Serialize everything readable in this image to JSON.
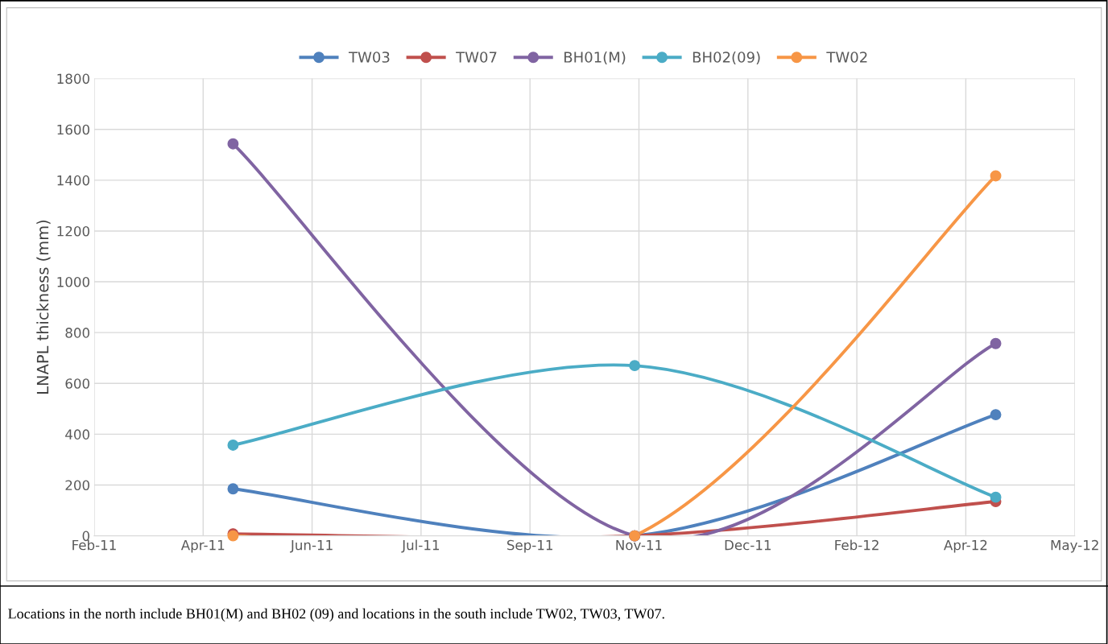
{
  "chart_data": {
    "type": "line",
    "ylabel": "LNAPL thickness (mm)",
    "x": [
      "2011-04-26",
      "2011-10-31",
      "2012-04-17"
    ],
    "series": [
      {
        "name": "TW03",
        "color": "#4f81bd",
        "values": [
          185,
          0,
          477
        ]
      },
      {
        "name": "TW07",
        "color": "#c0504d",
        "values": [
          8,
          0,
          135
        ]
      },
      {
        "name": "BH01(M)",
        "color": "#8064a2",
        "values": [
          1543,
          0,
          757
        ]
      },
      {
        "name": "BH02(09)",
        "color": "#4bacc6",
        "values": [
          357,
          670,
          152
        ]
      },
      {
        "name": "TW02",
        "color": "#f79646",
        "values": [
          0,
          0,
          1417
        ]
      }
    ],
    "xlim": [
      "2011-02-20",
      "2012-05-24"
    ],
    "xticks": [
      {
        "value": "2011-02-20",
        "label": "Feb-11"
      },
      {
        "value": "2011-04-12",
        "label": "Apr-11"
      },
      {
        "value": "2011-06-02",
        "label": "Jun-11"
      },
      {
        "value": "2011-07-23",
        "label": "Jul-11"
      },
      {
        "value": "2011-09-12",
        "label": "Sep-11"
      },
      {
        "value": "2011-11-02",
        "label": "Nov-11"
      },
      {
        "value": "2011-12-23",
        "label": "Dec-11"
      },
      {
        "value": "2012-02-12",
        "label": "Feb-12"
      },
      {
        "value": "2012-04-03",
        "label": "Apr-12"
      },
      {
        "value": "2012-05-24",
        "label": "May-12"
      }
    ],
    "ylim": [
      0,
      1800
    ],
    "yticks": [
      0,
      200,
      400,
      600,
      800,
      1000,
      1200,
      1400,
      1600,
      1800
    ],
    "grid": true,
    "legend": "top",
    "marker": "circle",
    "line_style": "solid",
    "annotations": [
      "Locations in the north include BH01(M) and BH02 (09) and locations in the south include TW02, TW03, TW07."
    ]
  }
}
